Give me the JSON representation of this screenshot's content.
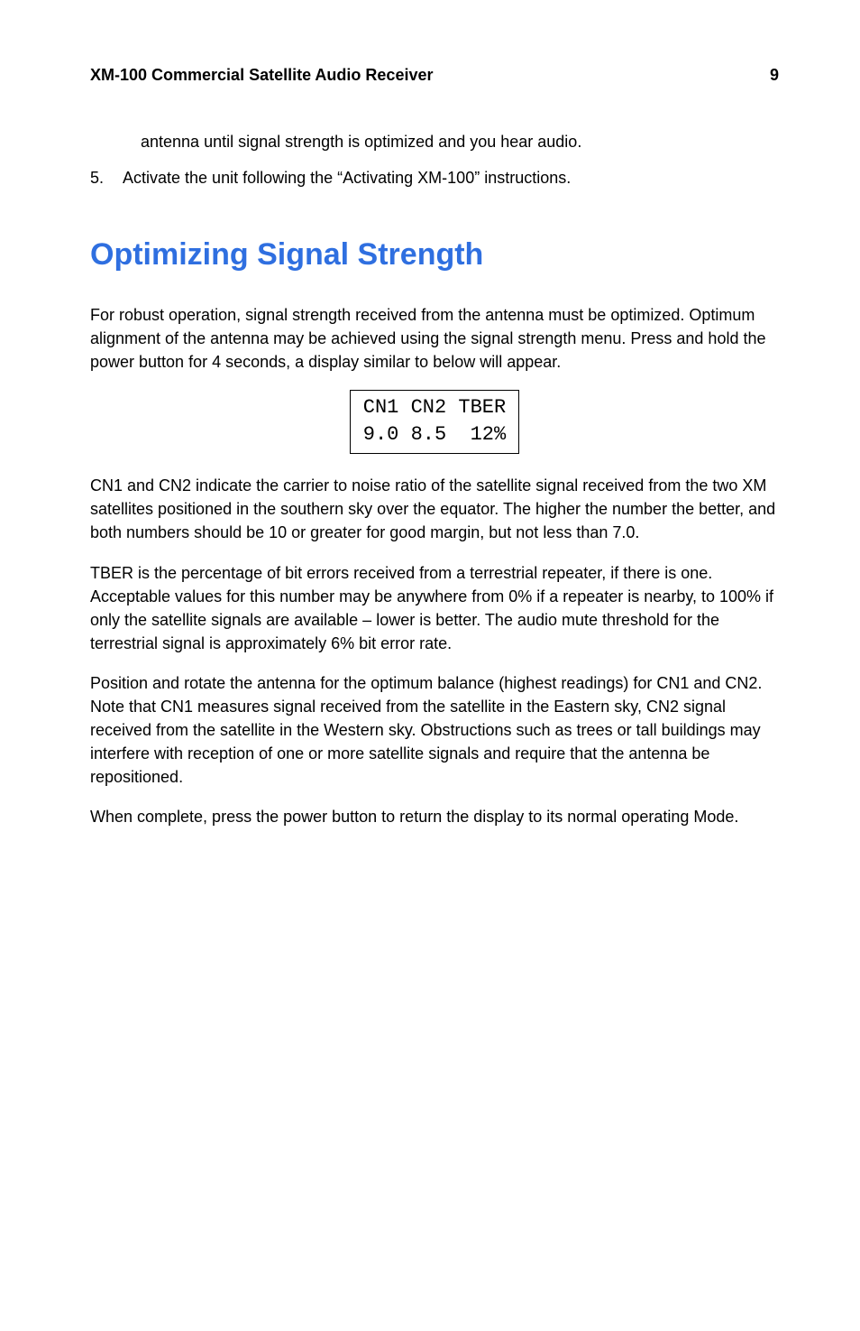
{
  "header": {
    "title": "XM-100 Commercial Satellite Audio Receiver",
    "page": "9"
  },
  "continuation": "antenna until signal strength is optimized and you hear audio.",
  "step": {
    "num": "5.",
    "text": "Activate the unit following the “Activating XM-100” instructions."
  },
  "heading": {
    "text": "Optimizing Signal Strength",
    "color": "#2f6fe0"
  },
  "intro": "For robust operation, signal strength received from the antenna must be optimized. Optimum alignment of the antenna may be achieved using the signal strength menu. Press and hold the power button for 4 seconds, a display similar to below will appear.",
  "display": {
    "line1": "CN1 CN2 TBER",
    "line2": "9.0 8.5  12%"
  },
  "p_cn": "CN1 and CN2 indicate the carrier to noise ratio of the satellite signal received from the two XM satellites positioned in the southern sky over the equator. The higher the number the better, and both numbers should be 10 or greater for good margin, but not less than 7.0.",
  "p_tber": "TBER is the percentage of bit errors received from a terrestrial repeater, if there is one. Acceptable values for this number may be anywhere from 0% if a repeater is nearby, to 100% if only the satellite signals are available – lower is better. The audio mute threshold for the terrestrial signal is approximately 6% bit error rate.",
  "p_position": "Position and rotate the antenna for the optimum balance (highest readings) for CN1 and CN2. Note that CN1 measures signal received from the satellite in the Eastern sky, CN2 signal received from the satellite in the Western sky. Obstructions such as trees or tall buildings may interfere with reception of one or more satellite signals and require that the antenna be repositioned.",
  "p_complete": "When complete, press the power button to return the display to its normal operating Mode."
}
